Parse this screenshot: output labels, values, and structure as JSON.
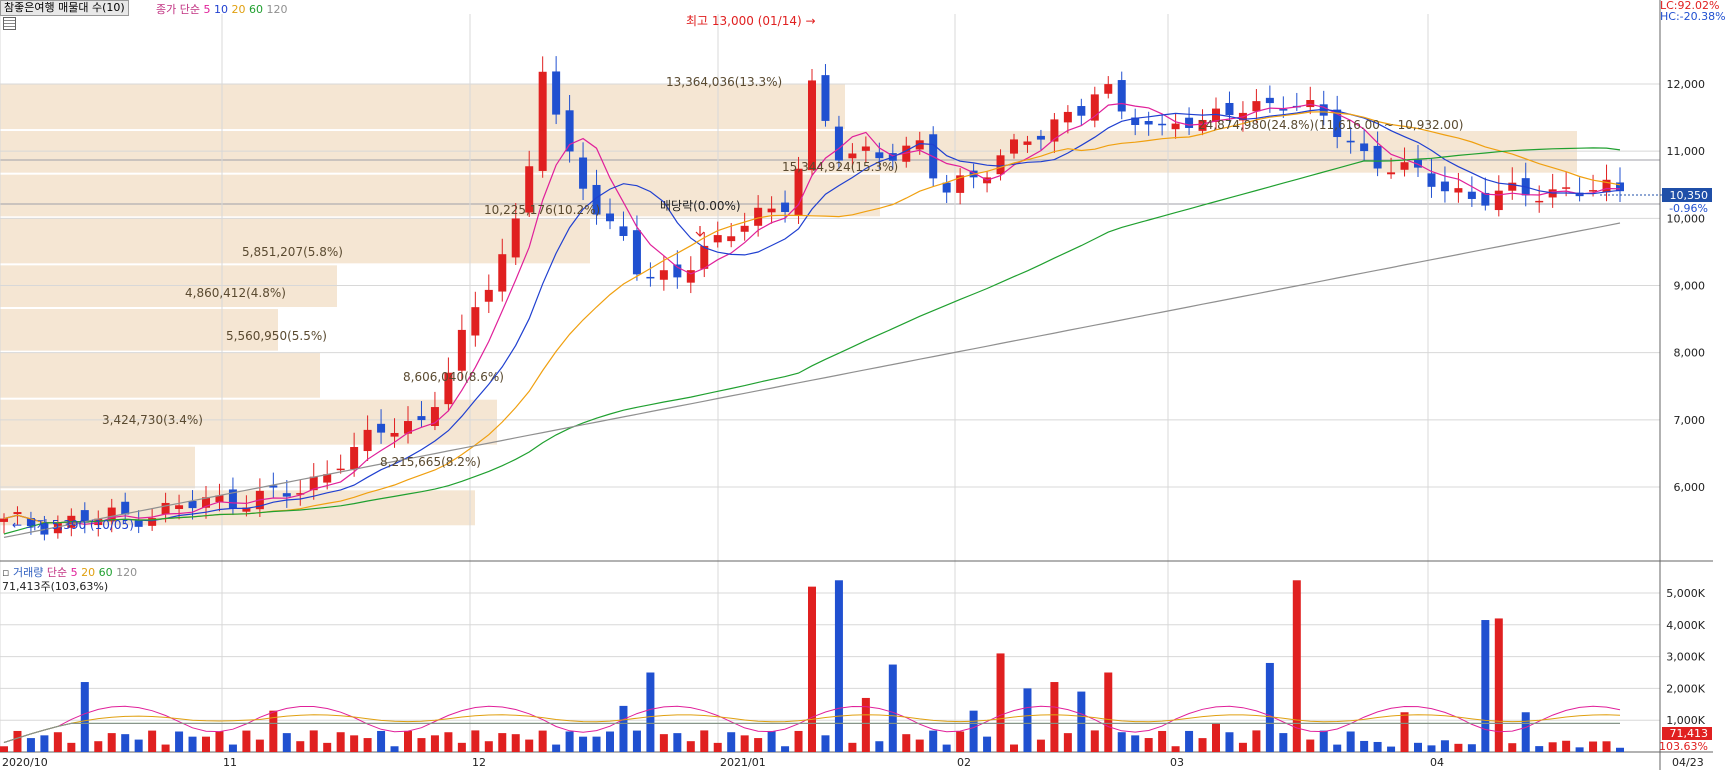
{
  "header": {
    "indicator_btn": "참좋은여행 매물대 수(10)",
    "price_label": "종가 단순",
    "ma_periods": [
      "5",
      "10",
      "20",
      "60",
      "120"
    ],
    "ma_colors": [
      "#e0209a",
      "#2040d0",
      "#f0a010",
      "#20a030",
      "#909090"
    ],
    "right_top_lc": "LC:92.02%",
    "right_top_hc": "HC:-20.38%"
  },
  "volume_header": {
    "label": "거래량",
    "ma_label": "단순",
    "ma_periods": [
      "5",
      "20",
      "60",
      "120"
    ],
    "value": "71,413주(103,63%)"
  },
  "annotations": {
    "high": "최고 13,000 (01/14)",
    "low": "최저 5,390 (10/05)",
    "dividend": "배당락(0.00%)"
  },
  "price_badge": {
    "value": "10,350",
    "change": "-0.96%"
  },
  "volume_badge": {
    "value": "71,413",
    "ratio": "103.63%"
  },
  "chart_data": {
    "type": "candlestick",
    "price_axis": {
      "ticks": [
        6000,
        7000,
        8000,
        9000,
        10000,
        11000,
        12000
      ],
      "labels": [
        "6,000",
        "7,000",
        "8,000",
        "9,000",
        "10,000",
        "11,000",
        "12,000"
      ]
    },
    "volume_axis": {
      "ticks": [
        1000,
        2000,
        3000,
        4000,
        5000
      ],
      "labels": [
        "1,000K",
        "2,000K",
        "3,000K",
        "4,000K",
        "5,000K"
      ]
    },
    "x_labels": [
      "2020/10",
      "11",
      "12",
      "2021/01",
      "02",
      "03",
      "04",
      "04/23"
    ],
    "volume_profile": [
      {
        "low": 5400,
        "high": 5950,
        "label": "8,215,665(8.2%)"
      },
      {
        "low": 5950,
        "high": 6600,
        "label": "3,424,730(3.4%)"
      },
      {
        "low": 6600,
        "high": 7300,
        "label": "8,606,040(8.6%)"
      },
      {
        "low": 7300,
        "high": 8000,
        "label": "5,560,950(5.5%)"
      },
      {
        "low": 8000,
        "high": 8650,
        "label": "4,860,412(4.8%)"
      },
      {
        "low": 8650,
        "high": 9300,
        "label": "5,851,207(5.8%)"
      },
      {
        "low": 9300,
        "high": 10000,
        "label": "10,225,176(10.2%)"
      },
      {
        "low": 10000,
        "high": 10650,
        "label": "15,344,924(15.3%)"
      },
      {
        "low": 10650,
        "high": 11300,
        "label": "24,874,980(24.8%)(11,616.00 ~ 10,932.00)"
      },
      {
        "low": 11300,
        "high": 12000,
        "label": "13,364,036(13.3%)"
      }
    ]
  }
}
